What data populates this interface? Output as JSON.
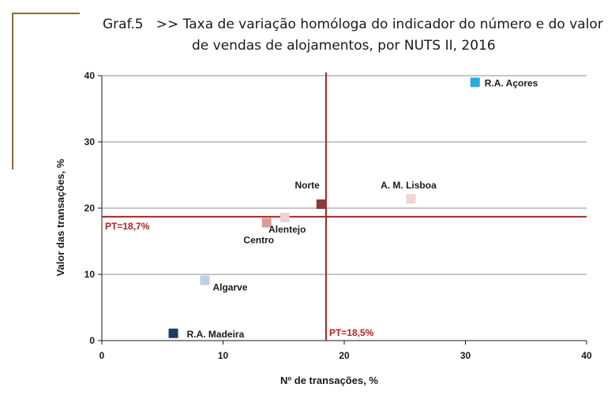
{
  "title": {
    "prefix": "Graf.5   >>",
    "line1": "Taxa de variação homóloga do indicador do número e do valor",
    "line2": "de vendas de alojamentos, por NUTS II, 2016"
  },
  "chart_data": {
    "type": "scatter",
    "xlabel": "Nº de transações, %",
    "ylabel": "Valor das transações, %",
    "xlim": [
      0,
      40
    ],
    "ylim": [
      0,
      40
    ],
    "xticks": [
      0,
      10,
      20,
      30,
      40
    ],
    "yticks": [
      0,
      10,
      20,
      30,
      40
    ],
    "grid": "horizontal",
    "points": [
      {
        "label": "R.A. Açores",
        "x": 30.8,
        "y": 39.0,
        "color": "#29abe2"
      },
      {
        "label": "A. M. Lisboa",
        "x": 25.5,
        "y": 21.4,
        "color": "#f2d4d4"
      },
      {
        "label": "Norte",
        "x": 18.1,
        "y": 20.6,
        "color": "#8b3a3a"
      },
      {
        "label": "Alentejo",
        "x": 15.1,
        "y": 18.6,
        "color": "#f0d0d0"
      },
      {
        "label": "Centro",
        "x": 13.6,
        "y": 17.8,
        "color": "#dc9a9a"
      },
      {
        "label": "Algarve",
        "x": 8.5,
        "y": 9.1,
        "color": "#bcd0e6"
      },
      {
        "label": "R.A. Madeira",
        "x": 5.9,
        "y": 1.1,
        "color": "#1f3a5f"
      }
    ],
    "reference_lines": {
      "horizontal": {
        "label": "PT=18,7%",
        "value": 18.7
      },
      "vertical": {
        "label": "PT=18,5%",
        "value": 18.5
      },
      "color": "#b22222"
    }
  }
}
